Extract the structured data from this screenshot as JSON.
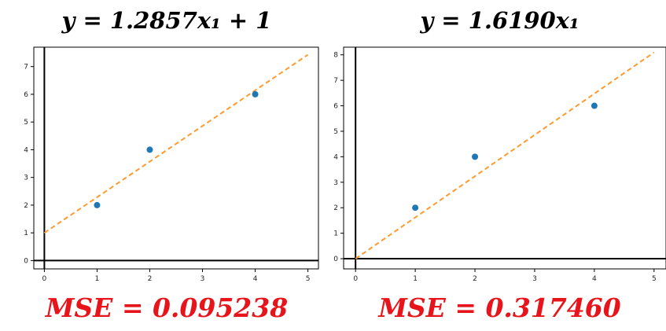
{
  "chart_data": [
    {
      "type": "scatter",
      "title": "y = 1.2857x₁ + 1",
      "footer": "MSE = 0.095238",
      "points": {
        "x": [
          1,
          2,
          4
        ],
        "y": [
          2,
          4,
          6
        ]
      },
      "fit_line": {
        "slope": 1.2857,
        "intercept": 1,
        "x_range": [
          0,
          5
        ]
      },
      "xlim": [
        -0.2,
        5.2
      ],
      "ylim": [
        -0.3,
        7.7
      ],
      "xticks": [
        "0",
        "1",
        "2",
        "3",
        "4",
        "5"
      ],
      "yticks": [
        "0",
        "1",
        "2",
        "3",
        "4",
        "5",
        "6",
        "7"
      ],
      "grid": false,
      "colors": {
        "points": "#1f77b4",
        "line": "#ff9a2e",
        "axis_lines": "#000000",
        "footer": "#e8141b"
      }
    },
    {
      "type": "scatter",
      "title": "y = 1.6190x₁",
      "footer": "MSE = 0.317460",
      "points": {
        "x": [
          1,
          2,
          4
        ],
        "y": [
          2,
          4,
          6
        ]
      },
      "fit_line": {
        "slope": 1.619,
        "intercept": 0,
        "x_range": [
          0,
          5
        ]
      },
      "xlim": [
        -0.2,
        5.2
      ],
      "ylim": [
        -0.4,
        8.3
      ],
      "xticks": [
        "0",
        "1",
        "2",
        "3",
        "4",
        "5"
      ],
      "yticks": [
        "0",
        "1",
        "2",
        "3",
        "4",
        "5",
        "6",
        "7",
        "8"
      ],
      "grid": false,
      "colors": {
        "points": "#1f77b4",
        "line": "#ff9a2e",
        "axis_lines": "#000000",
        "footer": "#e8141b"
      }
    }
  ]
}
